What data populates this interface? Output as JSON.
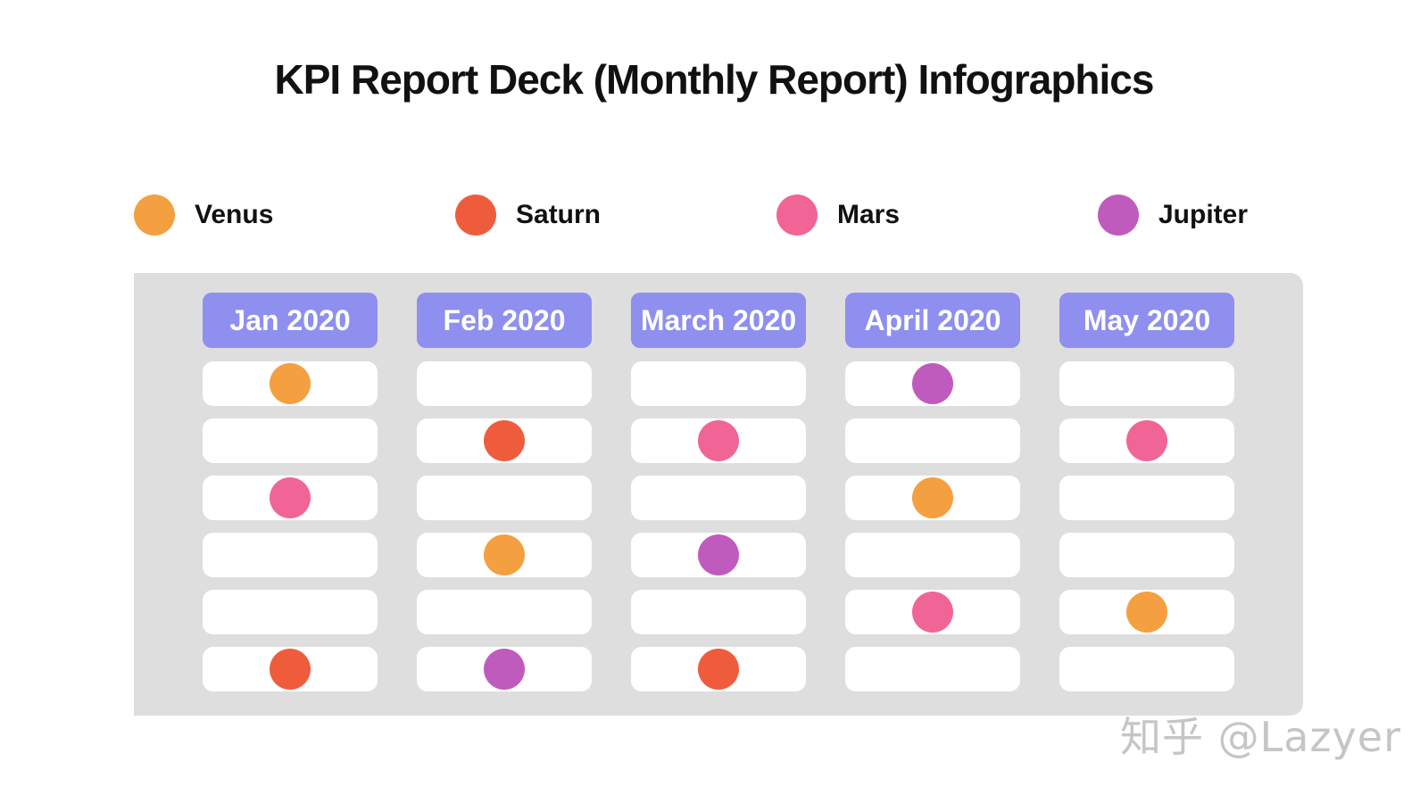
{
  "title": "KPI Report Deck (Monthly Report) Infographics",
  "legend": [
    {
      "label": "Venus",
      "color": "#f4a040"
    },
    {
      "label": "Saturn",
      "color": "#ef5c3c"
    },
    {
      "label": "Mars",
      "color": "#f06595"
    },
    {
      "label": "Jupiter",
      "color": "#c05bbe"
    }
  ],
  "colors": {
    "panel_bg": "#dedede",
    "header_bg": "#8f8ff0",
    "cell_bg": "#ffffff"
  },
  "months": [
    {
      "label": "Jan 2020",
      "rows": [
        "Venus",
        "",
        "Mars",
        "",
        "",
        "Saturn"
      ]
    },
    {
      "label": "Feb 2020",
      "rows": [
        "",
        "Saturn",
        "",
        "Venus",
        "",
        "Jupiter"
      ]
    },
    {
      "label": "March 2020",
      "rows": [
        "",
        "Mars",
        "",
        "Jupiter",
        "",
        "Saturn"
      ]
    },
    {
      "label": "April 2020",
      "rows": [
        "Jupiter",
        "",
        "Venus",
        "",
        "Mars",
        ""
      ]
    },
    {
      "label": "May 2020",
      "rows": [
        "",
        "Mars",
        "",
        "",
        "Venus",
        ""
      ]
    }
  ],
  "watermark": "知乎 @Lazyer"
}
